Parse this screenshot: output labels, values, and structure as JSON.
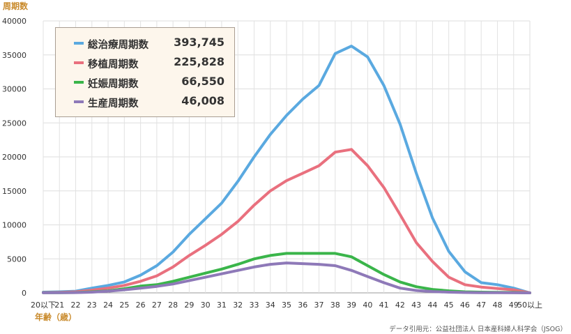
{
  "chart_data": {
    "type": "line",
    "ylabel": "周期数",
    "xlabel": "年齢（歳）",
    "source": "データ引用元：公益社団法人 日本産科婦人科学会（JSOG）",
    "categories": [
      "20以下",
      "21",
      "22",
      "23",
      "24",
      "25",
      "26",
      "27",
      "28",
      "29",
      "30",
      "31",
      "32",
      "33",
      "34",
      "35",
      "36",
      "37",
      "38",
      "39",
      "40",
      "41",
      "42",
      "43",
      "44",
      "45",
      "46",
      "47",
      "48",
      "49",
      "50以上"
    ],
    "yticks": [
      "0",
      "5000",
      "10000",
      "15000",
      "20000",
      "25000",
      "30000",
      "35000",
      "40000"
    ],
    "ylim": [
      0,
      40000
    ],
    "grid": true,
    "legend_position": "top-left",
    "series": [
      {
        "name": "総治療周期数",
        "total": "393,745",
        "color": "#5aa9e0",
        "values": [
          100,
          150,
          250,
          700,
          1100,
          1600,
          2600,
          4000,
          6000,
          8600,
          10900,
          13200,
          16400,
          20000,
          23300,
          26100,
          28500,
          30500,
          35200,
          36300,
          34700,
          30500,
          24800,
          17600,
          11000,
          6100,
          3100,
          1500,
          1200,
          700,
          0
        ]
      },
      {
        "name": "移植周期数",
        "total": "225,828",
        "color": "#e9707e",
        "values": [
          50,
          80,
          150,
          400,
          700,
          1100,
          1700,
          2500,
          3800,
          5500,
          7000,
          8600,
          10500,
          12900,
          15000,
          16500,
          17600,
          18700,
          20700,
          21100,
          18700,
          15500,
          11500,
          7400,
          4600,
          2300,
          1200,
          850,
          650,
          450,
          0
        ]
      },
      {
        "name": "妊娠周期数",
        "total": "66,550",
        "color": "#3ab54a",
        "values": [
          20,
          30,
          50,
          150,
          300,
          600,
          1000,
          1200,
          1700,
          2300,
          2900,
          3500,
          4200,
          5000,
          5500,
          5800,
          5800,
          5800,
          5800,
          5300,
          4000,
          2700,
          1600,
          900,
          500,
          300,
          150,
          100,
          80,
          60,
          0
        ]
      },
      {
        "name": "生産周期数",
        "total": "46,008",
        "color": "#8e79b8",
        "values": [
          10,
          20,
          40,
          100,
          250,
          450,
          700,
          950,
          1300,
          1800,
          2300,
          2800,
          3300,
          3800,
          4200,
          4400,
          4300,
          4200,
          4000,
          3300,
          2400,
          1500,
          700,
          350,
          200,
          100,
          50,
          30,
          20,
          10,
          0
        ]
      }
    ]
  }
}
